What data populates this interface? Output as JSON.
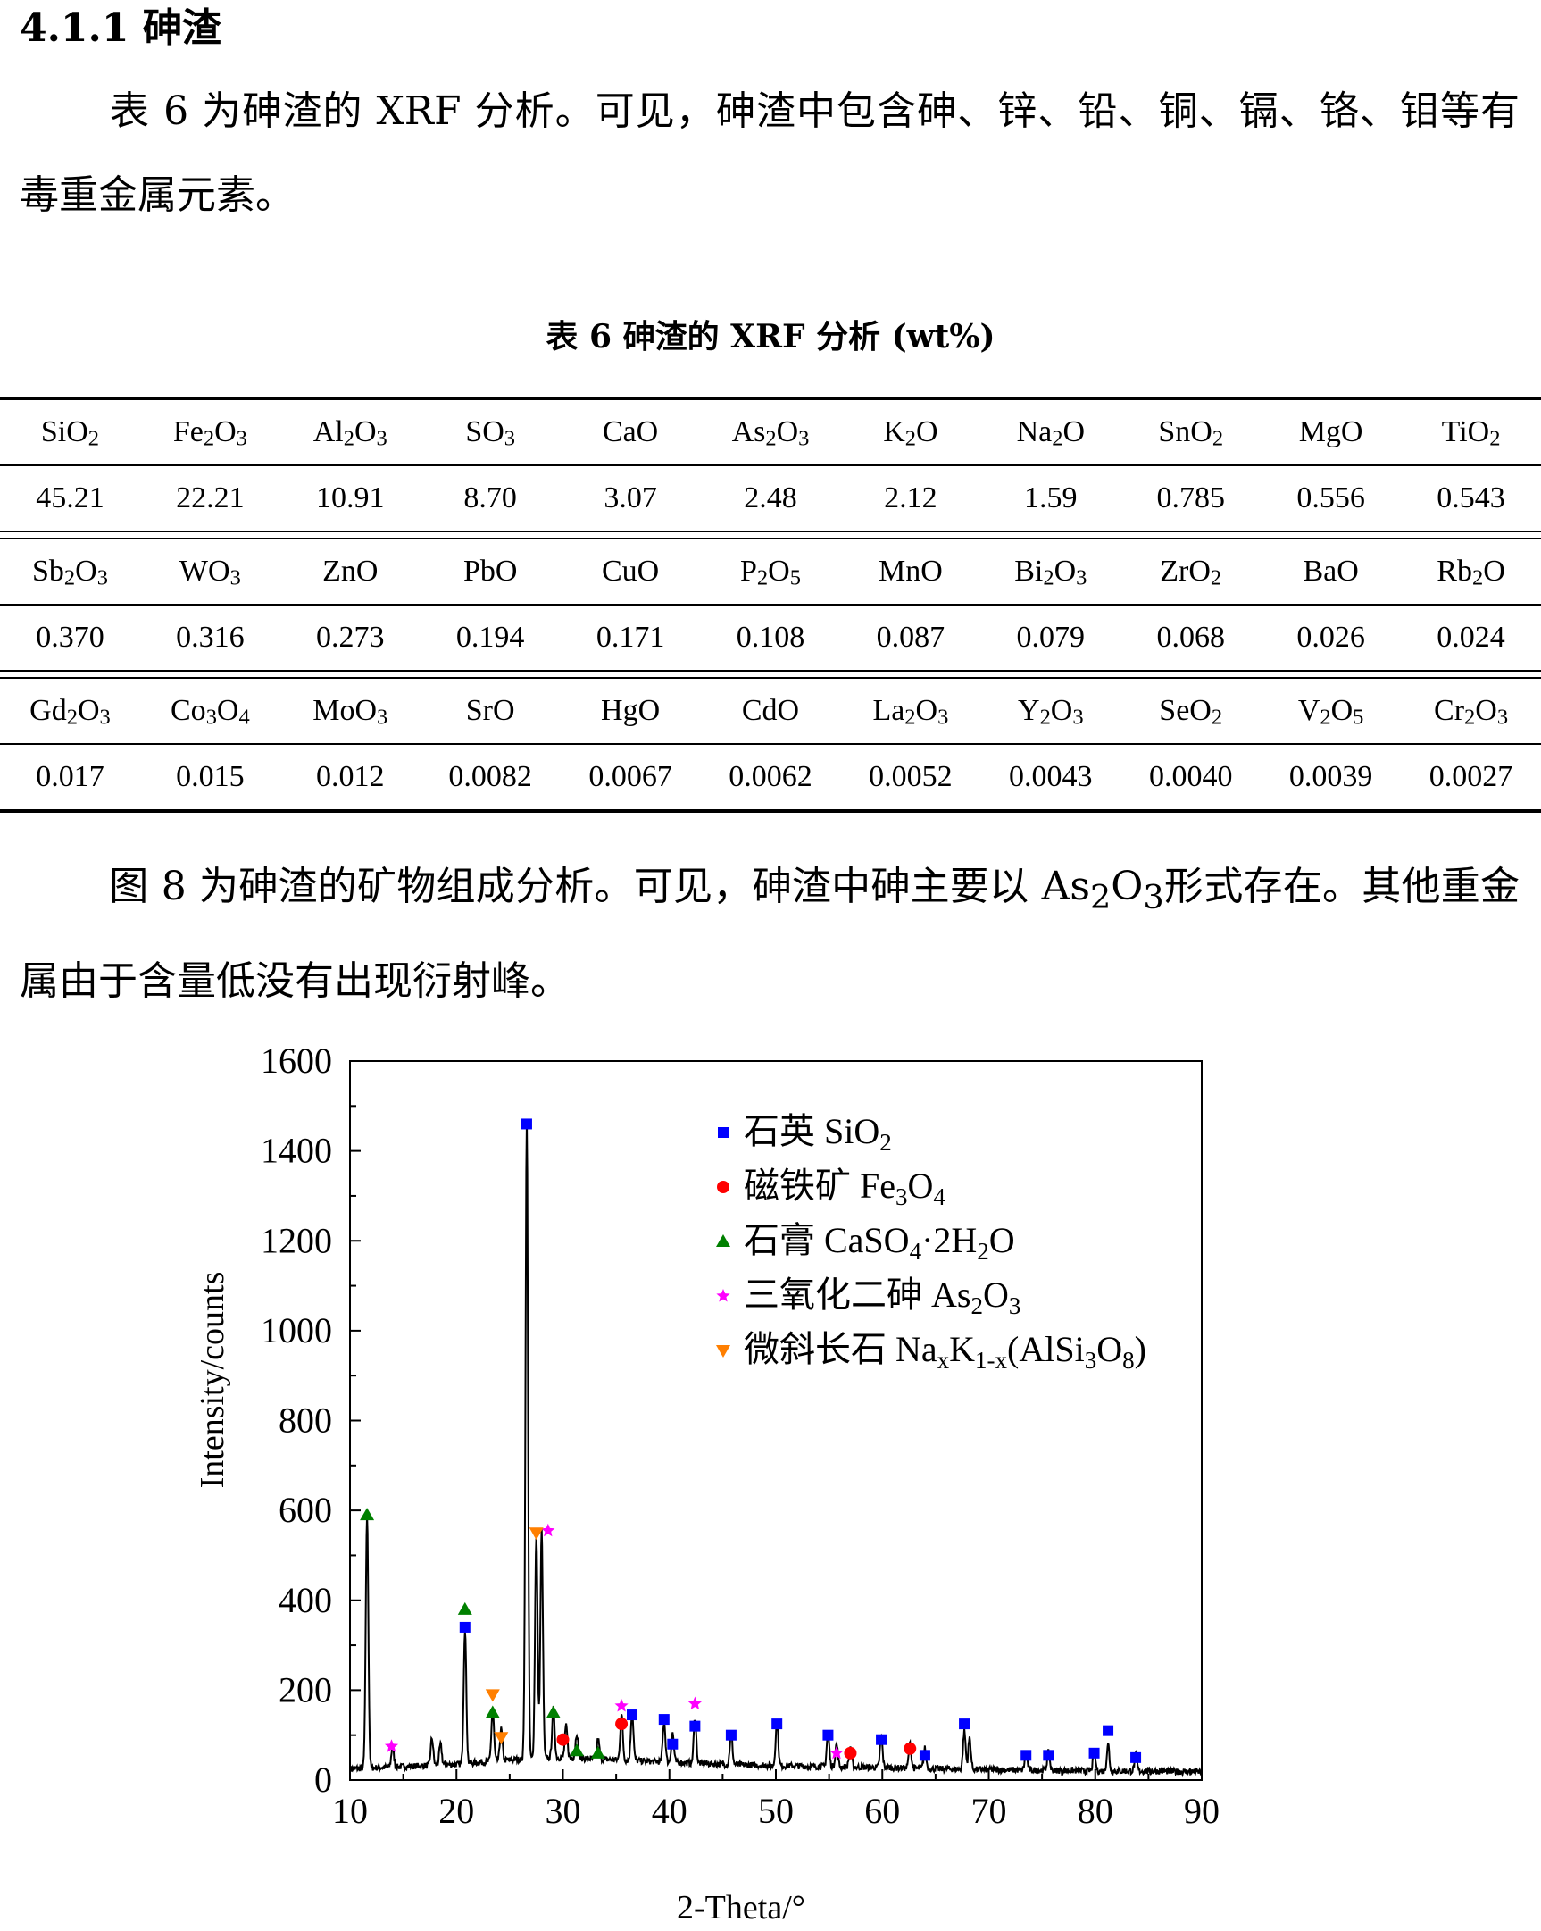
{
  "section": {
    "heading": "4.1.1 砷渣"
  },
  "paragraph1": "表 6 为砷渣的 XRF 分析。可见，砷渣中包含砷、锌、铅、铜、镉、铬、钼等有毒重金属元素。",
  "table": {
    "caption": "表 6 砷渣的 XRF 分析 (wt%)",
    "rows": [
      {
        "names": [
          [
            [
              "SiO"
            ],
            [
              "2",
              "sub"
            ]
          ],
          [
            [
              "Fe"
            ],
            [
              "2",
              "sub"
            ],
            [
              "O"
            ],
            [
              "3",
              "sub"
            ]
          ],
          [
            [
              "Al"
            ],
            [
              "2",
              "sub"
            ],
            [
              "O"
            ],
            [
              "3",
              "sub"
            ]
          ],
          [
            [
              "SO"
            ],
            [
              "3",
              "sub"
            ]
          ],
          [
            [
              "CaO"
            ]
          ],
          [
            [
              "As"
            ],
            [
              "2",
              "sub"
            ],
            [
              "O"
            ],
            [
              "3",
              "sub"
            ]
          ],
          [
            [
              "K"
            ],
            [
              "2",
              "sub"
            ],
            [
              "O"
            ]
          ],
          [
            [
              "Na"
            ],
            [
              "2",
              "sub"
            ],
            [
              "O"
            ]
          ],
          [
            [
              "SnO"
            ],
            [
              "2",
              "sub"
            ]
          ],
          [
            [
              "MgO"
            ]
          ],
          [
            [
              "TiO"
            ],
            [
              "2",
              "sub"
            ]
          ]
        ],
        "values": [
          "45.21",
          "22.21",
          "10.91",
          "8.70",
          "3.07",
          "2.48",
          "2.12",
          "1.59",
          "0.785",
          "0.556",
          "0.543"
        ]
      },
      {
        "names": [
          [
            [
              "Sb"
            ],
            [
              "2",
              "sub"
            ],
            [
              "O"
            ],
            [
              "3",
              "sub"
            ]
          ],
          [
            [
              "WO"
            ],
            [
              "3",
              "sub"
            ]
          ],
          [
            [
              "ZnO"
            ]
          ],
          [
            [
              "PbO"
            ]
          ],
          [
            [
              "CuO"
            ]
          ],
          [
            [
              "P"
            ],
            [
              "2",
              "sub"
            ],
            [
              "O"
            ],
            [
              "5",
              "sub"
            ]
          ],
          [
            [
              "MnO"
            ]
          ],
          [
            [
              "Bi"
            ],
            [
              "2",
              "sub"
            ],
            [
              "O"
            ],
            [
              "3",
              "sub"
            ]
          ],
          [
            [
              "ZrO"
            ],
            [
              "2",
              "sub"
            ]
          ],
          [
            [
              "BaO"
            ]
          ],
          [
            [
              "Rb"
            ],
            [
              "2",
              "sub"
            ],
            [
              "O"
            ]
          ]
        ],
        "values": [
          "0.370",
          "0.316",
          "0.273",
          "0.194",
          "0.171",
          "0.108",
          "0.087",
          "0.079",
          "0.068",
          "0.026",
          "0.024"
        ]
      },
      {
        "names": [
          [
            [
              "Gd"
            ],
            [
              "2",
              "sub"
            ],
            [
              "O"
            ],
            [
              "3",
              "sub"
            ]
          ],
          [
            [
              "Co"
            ],
            [
              "3",
              "sub"
            ],
            [
              "O"
            ],
            [
              "4",
              "sub"
            ]
          ],
          [
            [
              "MoO"
            ],
            [
              "3",
              "sub"
            ]
          ],
          [
            [
              "SrO"
            ]
          ],
          [
            [
              "HgO"
            ]
          ],
          [
            [
              "CdO"
            ]
          ],
          [
            [
              "La"
            ],
            [
              "2",
              "sub"
            ],
            [
              "O"
            ],
            [
              "3",
              "sub"
            ]
          ],
          [
            [
              "Y"
            ],
            [
              "2",
              "sub"
            ],
            [
              "O"
            ],
            [
              "3",
              "sub"
            ]
          ],
          [
            [
              "SeO"
            ],
            [
              "2",
              "sub"
            ]
          ],
          [
            [
              "V"
            ],
            [
              "2",
              "sub"
            ],
            [
              "O"
            ],
            [
              "5",
              "sub"
            ]
          ],
          [
            [
              "Cr"
            ],
            [
              "2",
              "sub"
            ],
            [
              "O"
            ],
            [
              "3",
              "sub"
            ]
          ]
        ],
        "values": [
          "0.017",
          "0.015",
          "0.012",
          "0.0082",
          "0.0067",
          "0.0062",
          "0.0052",
          "0.0043",
          "0.0040",
          "0.0039",
          "0.0027"
        ]
      }
    ]
  },
  "paragraph2": [
    [
      "图 8 为砷渣的矿物组成分析。可见，砷渣中砷主要以 As"
    ],
    [
      "2",
      "sub"
    ],
    [
      "O"
    ],
    [
      "3",
      "sub"
    ],
    [
      "形式存在。其他重金属由于含量低没有出现衍射峰。"
    ]
  ],
  "chart_data": {
    "type": "line",
    "xlabel": "2-Theta/°",
    "ylabel": "Intensity/counts",
    "xlim": [
      10,
      90
    ],
    "ylim": [
      0,
      1600
    ],
    "xticks": [
      10,
      20,
      30,
      40,
      50,
      60,
      70,
      80,
      90
    ],
    "yticks": [
      0,
      200,
      400,
      600,
      800,
      1000,
      1200,
      1400,
      1600
    ],
    "baseline": {
      "x": [
        10,
        15,
        20,
        25,
        30,
        35,
        40,
        45,
        50,
        55,
        60,
        65,
        70,
        75,
        80,
        85,
        90
      ],
      "y": [
        25,
        30,
        35,
        45,
        50,
        45,
        40,
        35,
        32,
        30,
        28,
        25,
        23,
        22,
        20,
        20,
        18
      ]
    },
    "peaks": [
      {
        "x": 11.6,
        "y": 565
      },
      {
        "x": 14.0,
        "y": 45
      },
      {
        "x": 17.7,
        "y": 60
      },
      {
        "x": 18.5,
        "y": 45
      },
      {
        "x": 20.8,
        "y": 300
      },
      {
        "x": 23.4,
        "y": 115
      },
      {
        "x": 24.2,
        "y": 70
      },
      {
        "x": 26.6,
        "y": 1420
      },
      {
        "x": 27.5,
        "y": 500
      },
      {
        "x": 28.0,
        "y": 510
      },
      {
        "x": 29.1,
        "y": 110
      },
      {
        "x": 30.3,
        "y": 70
      },
      {
        "x": 31.3,
        "y": 55
      },
      {
        "x": 33.3,
        "y": 45
      },
      {
        "x": 35.5,
        "y": 100
      },
      {
        "x": 36.5,
        "y": 110
      },
      {
        "x": 39.5,
        "y": 90
      },
      {
        "x": 40.3,
        "y": 65
      },
      {
        "x": 42.4,
        "y": 100
      },
      {
        "x": 45.8,
        "y": 70
      },
      {
        "x": 50.1,
        "y": 100
      },
      {
        "x": 54.9,
        "y": 75
      },
      {
        "x": 55.7,
        "y": 50
      },
      {
        "x": 57.0,
        "y": 45
      },
      {
        "x": 59.9,
        "y": 70
      },
      {
        "x": 62.6,
        "y": 55
      },
      {
        "x": 64.0,
        "y": 45
      },
      {
        "x": 67.7,
        "y": 85
      },
      {
        "x": 68.2,
        "y": 70
      },
      {
        "x": 73.5,
        "y": 40
      },
      {
        "x": 75.6,
        "y": 40
      },
      {
        "x": 79.9,
        "y": 45
      },
      {
        "x": 81.2,
        "y": 60
      },
      {
        "x": 83.8,
        "y": 35
      }
    ],
    "markers": [
      {
        "series": 0,
        "x": [
          20.8,
          26.6,
          36.5,
          39.5,
          40.3,
          42.4,
          45.8,
          50.1,
          54.9,
          59.9,
          64.0,
          67.7,
          73.5,
          75.6,
          79.9,
          81.2,
          83.8
        ],
        "y": [
          340,
          1460,
          145,
          135,
          80,
          120,
          100,
          125,
          100,
          90,
          55,
          125,
          55,
          55,
          60,
          110,
          50
        ]
      },
      {
        "series": 1,
        "x": [
          30.0,
          35.5,
          57.0,
          62.6
        ],
        "y": [
          90,
          125,
          60,
          70
        ]
      },
      {
        "series": 2,
        "x": [
          11.6,
          20.8,
          23.4,
          29.1,
          31.3,
          33.3
        ],
        "y": [
          590,
          380,
          150,
          150,
          65,
          60
        ]
      },
      {
        "series": 3,
        "x": [
          13.9,
          28.6,
          35.5,
          42.4,
          55.7
        ],
        "y": [
          75,
          555,
          165,
          170,
          60
        ]
      },
      {
        "series": 4,
        "x": [
          27.5,
          23.4,
          24.2
        ],
        "y": [
          550,
          190,
          95
        ]
      }
    ],
    "series": [
      {
        "name": [
          [
            "石英 SiO"
          ],
          [
            "2",
            "sub"
          ]
        ],
        "marker": "square",
        "color": "#0000ff"
      },
      {
        "name": [
          [
            "磁铁矿 Fe"
          ],
          [
            "3",
            "sub"
          ],
          [
            "O"
          ],
          [
            "4",
            "sub"
          ]
        ],
        "marker": "circle",
        "color": "#ff0000"
      },
      {
        "name": [
          [
            "石膏 CaSO"
          ],
          [
            "4",
            "sub"
          ],
          [
            "·2H"
          ],
          [
            "2",
            "sub"
          ],
          [
            "O"
          ]
        ],
        "marker": "triangle-up",
        "color": "#008000"
      },
      {
        "name": [
          [
            "三氧化二砷 As"
          ],
          [
            "2",
            "sub"
          ],
          [
            "O"
          ],
          [
            "3",
            "sub"
          ]
        ],
        "marker": "star",
        "color": "#ff00ff"
      },
      {
        "name": [
          [
            "微斜长石 Na"
          ],
          [
            "x",
            "sub"
          ],
          [
            "K"
          ],
          [
            "1-x",
            "sub"
          ],
          [
            "(AlSi"
          ],
          [
            "3",
            "sub"
          ],
          [
            "O"
          ],
          [
            "8",
            "sub"
          ],
          [
            ")"
          ]
        ],
        "marker": "triangle-down",
        "color": "#ff7f00"
      }
    ],
    "legend_position": "top-right"
  }
}
